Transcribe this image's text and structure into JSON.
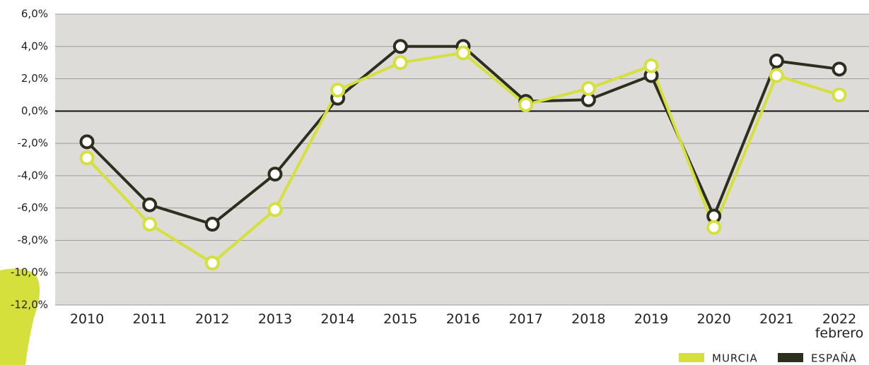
{
  "chart_data": {
    "type": "line",
    "categories": [
      "2010",
      "2011",
      "2012",
      "2013",
      "2014",
      "2015",
      "2016",
      "2017",
      "2018",
      "2019",
      "2020",
      "2021",
      "2022\nfebrero"
    ],
    "series": [
      {
        "name": "ESPAÑA",
        "color": "#2c2e1e",
        "values": [
          -1.9,
          -5.8,
          -7.0,
          -3.9,
          0.8,
          4.0,
          4.0,
          0.6,
          0.7,
          2.2,
          -6.5,
          3.1,
          2.6
        ]
      },
      {
        "name": "MURCIA",
        "color": "#d5e03c",
        "values": [
          -2.9,
          -7.0,
          -9.4,
          -6.1,
          1.3,
          3.0,
          3.6,
          0.4,
          1.4,
          2.8,
          -7.2,
          2.2,
          1.0
        ]
      }
    ],
    "legend_order": [
      1,
      0
    ],
    "ylim": [
      -12,
      6
    ],
    "yticks": [
      {
        "value": -12,
        "label": "-12,0%"
      },
      {
        "value": -10,
        "label": "-10,0%"
      },
      {
        "value": -8,
        "label": "-8,0%"
      },
      {
        "value": -6,
        "label": "-6,0%"
      },
      {
        "value": -4,
        "label": "-4,0%"
      },
      {
        "value": -2,
        "label": "-2,0%"
      },
      {
        "value": 0,
        "label": "0,0%"
      },
      {
        "value": 2,
        "label": "2,0%"
      },
      {
        "value": 4,
        "label": "4,0%"
      },
      {
        "value": 6,
        "label": "6,0%"
      }
    ],
    "grid": true
  }
}
